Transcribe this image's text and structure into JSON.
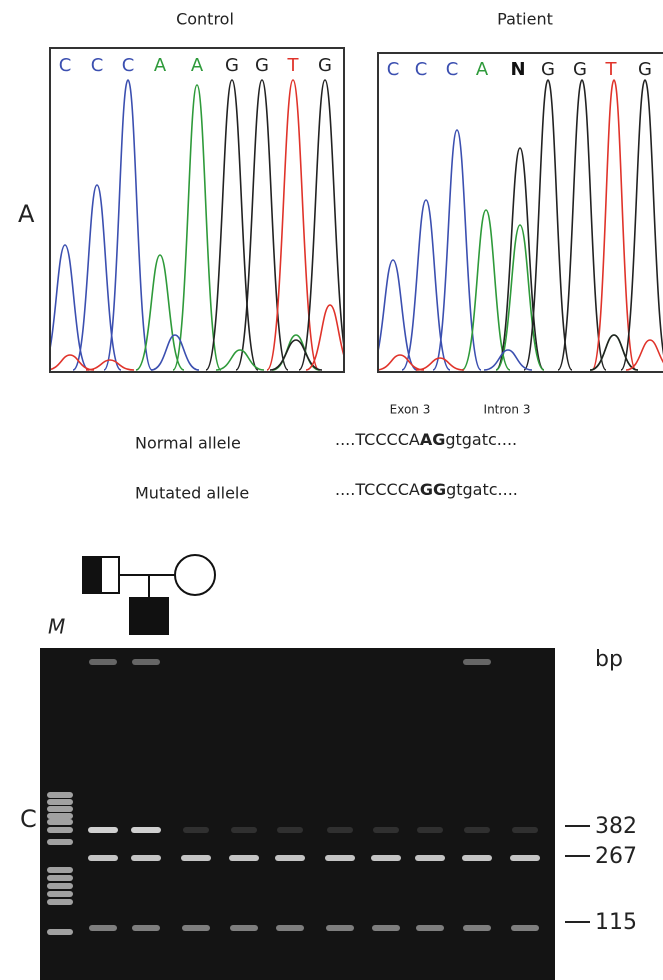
{
  "panel_a": {
    "label": "A",
    "control": {
      "title": "Control",
      "bases": [
        "C",
        "C",
        "C",
        "A",
        "A",
        "G",
        "G",
        "T",
        "G"
      ]
    },
    "patient": {
      "title": "Patient",
      "bases": [
        "C",
        "C",
        "C",
        "A",
        "N",
        "G",
        "G",
        "T",
        "G"
      ]
    },
    "exon_label": "Exon 3",
    "intron_label": "Intron 3",
    "alleles": [
      {
        "name": "Normal allele",
        "prefix": "....TCCCCA",
        "bold": "AG",
        "suffix": "gtgatc...."
      },
      {
        "name": "Mutated allele",
        "prefix": "....TCCCCA",
        "bold": "GG",
        "suffix": "gtgatc...."
      }
    ]
  },
  "panel_c": {
    "label": "C",
    "lane_marker": "M",
    "unit": "bp",
    "sizes": [
      382,
      267,
      115
    ]
  }
}
